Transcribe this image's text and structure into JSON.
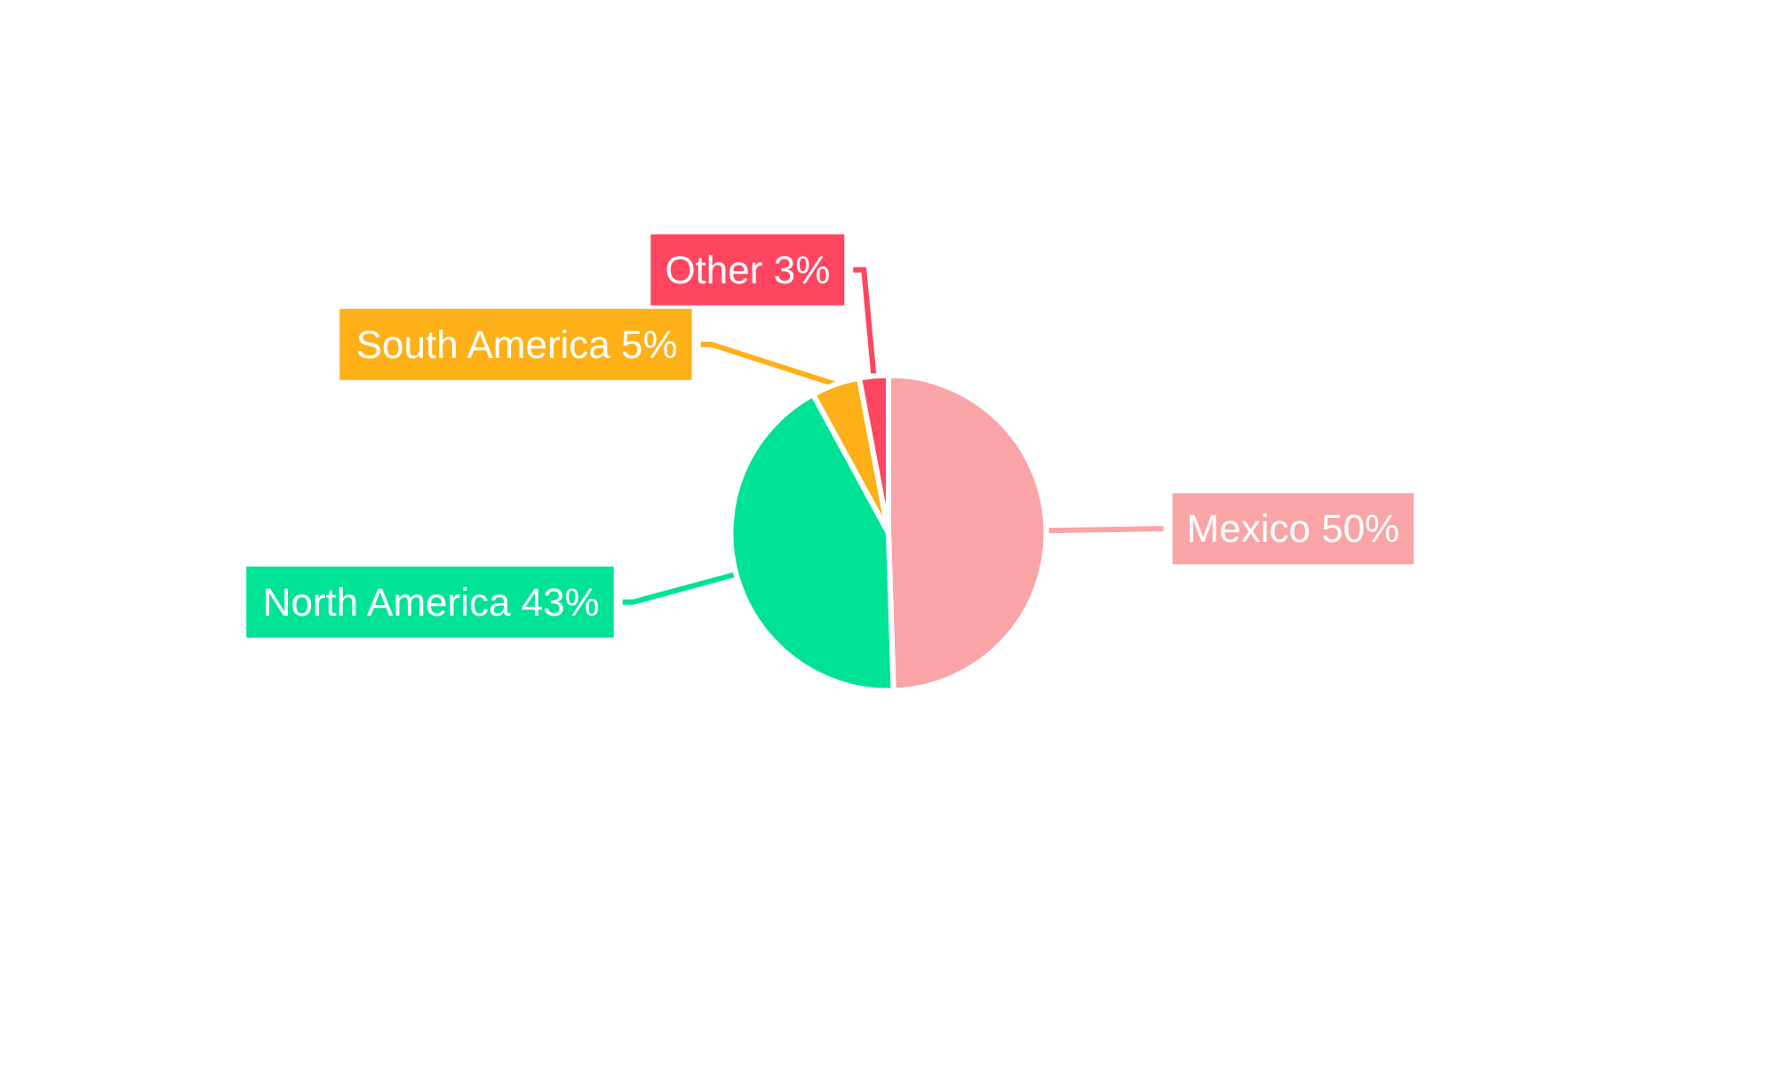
{
  "chart_data": {
    "type": "pie",
    "categories": [
      "Mexico",
      "North America",
      "South America",
      "Other"
    ],
    "values": [
      50,
      43,
      5,
      3
    ],
    "value_labels": [
      "50%",
      "43%",
      "5%",
      "3%"
    ],
    "colors": [
      "#f9a5a7",
      "#00e396",
      "#feb019",
      "#ff4560"
    ]
  }
}
